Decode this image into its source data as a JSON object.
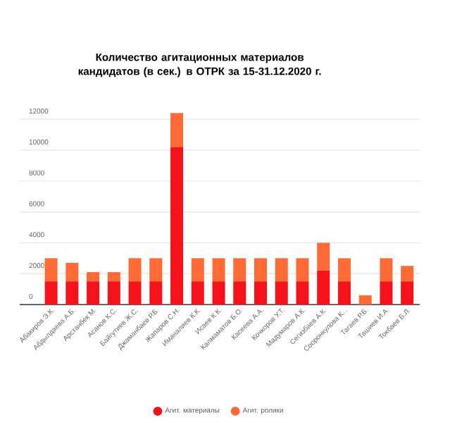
{
  "chart_data": {
    "type": "bar",
    "stacked": true,
    "title": "Количество агитационных материалов кандидатов (в сек.) в ОТРК за 15-31.12.2020 г.",
    "categories": [
      "Абакиров Э.К.",
      "Абдылдаева А.Б.",
      "Арстанбек М.",
      "Асанов К.С.",
      "Байгутиев Ж.С.",
      "Джаманбаев Р.Б.",
      "Жапаров С.Н.",
      "Иманалиев К.К.",
      "Исаев К.К.",
      "Калмаматов Б.О.",
      "Касеева А.А.",
      "Кочкоров У.Т.",
      "Мадумаров А.К.",
      "Сегизбаев А.К.",
      "Сооронкулова К...",
      "Тагаев Р.Б.",
      "Ташиев И.А.",
      "Токбаев Б.Л."
    ],
    "series": [
      {
        "name": "Агит. материалы",
        "color": "#f5121b",
        "values": [
          1500,
          1500,
          1500,
          1500,
          1500,
          1500,
          10200,
          1500,
          1500,
          1500,
          1500,
          1500,
          1500,
          2200,
          1500,
          0,
          1500,
          1500
        ]
      },
      {
        "name": "Агит. ролики",
        "color": "#ff6a35",
        "values": [
          1500,
          1200,
          600,
          600,
          1500,
          1500,
          2200,
          1500,
          1500,
          1500,
          1500,
          1500,
          1500,
          1800,
          1500,
          600,
          1500,
          1000
        ]
      }
    ],
    "ylim": [
      0,
      12600
    ],
    "yticks": [
      0,
      2000,
      4000,
      6000,
      8000,
      10000,
      12000
    ],
    "grid": "y",
    "legend": "bottom"
  }
}
